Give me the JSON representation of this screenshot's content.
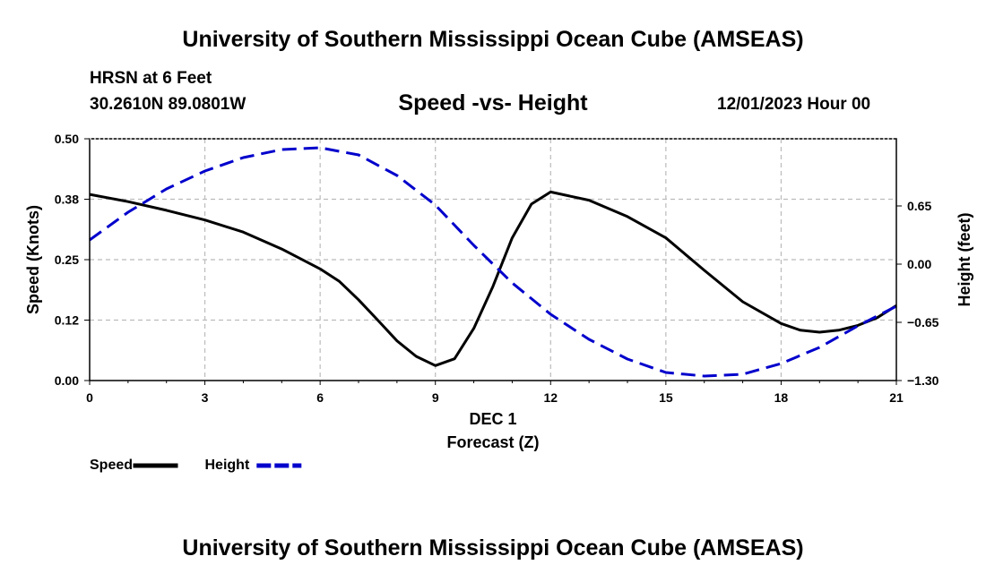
{
  "header": {
    "title": "University of Southern Mississippi Ocean Cube (AMSEAS)",
    "station": "HRSN at 6 Feet",
    "coords": "30.2610N  89.0801W",
    "subtitle": "Speed -vs- Height",
    "datetime": "12/01/2023 Hour 00"
  },
  "footer": {
    "title": "University of Southern Mississippi Ocean Cube (AMSEAS)"
  },
  "chart_data": {
    "type": "line",
    "title": "Speed -vs- Height",
    "xlabel_line1": "DEC 1",
    "xlabel_line2": "Forecast (Z)",
    "ylabel": "Speed (Knots)",
    "y2label": "Height (feet)",
    "xlim": [
      0,
      21
    ],
    "ylim": [
      0,
      0.5
    ],
    "y2lim": [
      -1.3,
      1.4
    ],
    "x_ticks": [
      0,
      3,
      6,
      9,
      12,
      15,
      18,
      21
    ],
    "x_tick_labels": [
      "0",
      "3",
      "6",
      "9",
      "12",
      "15",
      "18",
      "21"
    ],
    "y_ticks": [
      0,
      0.125,
      0.25,
      0.375,
      0.5
    ],
    "y_tick_labels": [
      "0.00",
      "0.12",
      "0.25",
      "0.38",
      "0.50"
    ],
    "y2_ticks": [
      -1.3,
      -0.65,
      0,
      0.65
    ],
    "y2_tick_labels": [
      "−1.30",
      "−0.65",
      "0.00",
      "0.65"
    ],
    "grid": true,
    "series": [
      {
        "name": "Speed",
        "axis": "left",
        "color": "#000000",
        "dash": "solid",
        "x": [
          0,
          1,
          2,
          3,
          4,
          5,
          6,
          6.5,
          7,
          7.5,
          8,
          8.5,
          9,
          9.5,
          10,
          10.5,
          11,
          11.5,
          12,
          13,
          14,
          15,
          16,
          17,
          18,
          18.5,
          19,
          19.5,
          20,
          20.5,
          21
        ],
        "values": [
          0.385,
          0.37,
          0.352,
          0.332,
          0.307,
          0.272,
          0.231,
          0.205,
          0.167,
          0.125,
          0.082,
          0.05,
          0.031,
          0.045,
          0.108,
          0.195,
          0.295,
          0.365,
          0.39,
          0.373,
          0.339,
          0.295,
          0.228,
          0.163,
          0.118,
          0.104,
          0.1,
          0.104,
          0.114,
          0.13,
          0.155
        ]
      },
      {
        "name": "Height",
        "axis": "right",
        "color": "#0000cc",
        "dash": "dashed",
        "x": [
          0,
          1,
          2,
          3,
          4,
          5,
          6,
          7,
          8,
          9,
          10,
          11,
          12,
          13,
          14,
          15,
          16,
          17,
          18,
          19,
          20,
          21
        ],
        "values": [
          0.27,
          0.58,
          0.84,
          1.04,
          1.19,
          1.28,
          1.3,
          1.22,
          0.99,
          0.66,
          0.21,
          -0.21,
          -0.56,
          -0.84,
          -1.06,
          -1.21,
          -1.25,
          -1.23,
          -1.11,
          -0.93,
          -0.69,
          -0.47
        ]
      }
    ],
    "legend": {
      "placement": "bottom-left",
      "entries": [
        {
          "label": "Speed",
          "color": "#000000",
          "dash": "solid"
        },
        {
          "label": "Height",
          "color": "#0000cc",
          "dash": "dashed"
        }
      ]
    }
  }
}
